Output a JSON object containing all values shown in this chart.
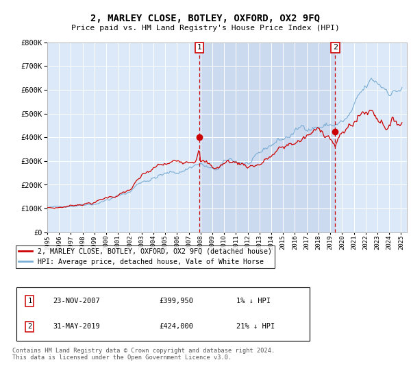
{
  "title": "2, MARLEY CLOSE, BOTLEY, OXFORD, OX2 9FQ",
  "subtitle": "Price paid vs. HM Land Registry's House Price Index (HPI)",
  "background_color": "#dce9f8",
  "plot_bg_color": "#dce9f8",
  "highlight_bg_color": "#ccdaf0",
  "hpi_color": "#7aadd4",
  "price_color": "#cc0000",
  "vline_color": "#cc0000",
  "ylim": [
    0,
    800000
  ],
  "yticks": [
    0,
    100000,
    200000,
    300000,
    400000,
    500000,
    600000,
    700000,
    800000
  ],
  "legend_label_price": "2, MARLEY CLOSE, BOTLEY, OXFORD, OX2 9FQ (detached house)",
  "legend_label_hpi": "HPI: Average price, detached house, Vale of White Horse",
  "sale1_date": "23-NOV-2007",
  "sale1_year": 2007.896,
  "sale1_price": 399950,
  "sale1_label": "1",
  "sale1_hpi_pct": "1%",
  "sale2_date": "31-MAY-2019",
  "sale2_year": 2019.413,
  "sale2_price": 424000,
  "sale2_label": "2",
  "sale2_hpi_pct": "21%",
  "footer": "Contains HM Land Registry data © Crown copyright and database right 2024.\nThis data is licensed under the Open Government Licence v3.0."
}
